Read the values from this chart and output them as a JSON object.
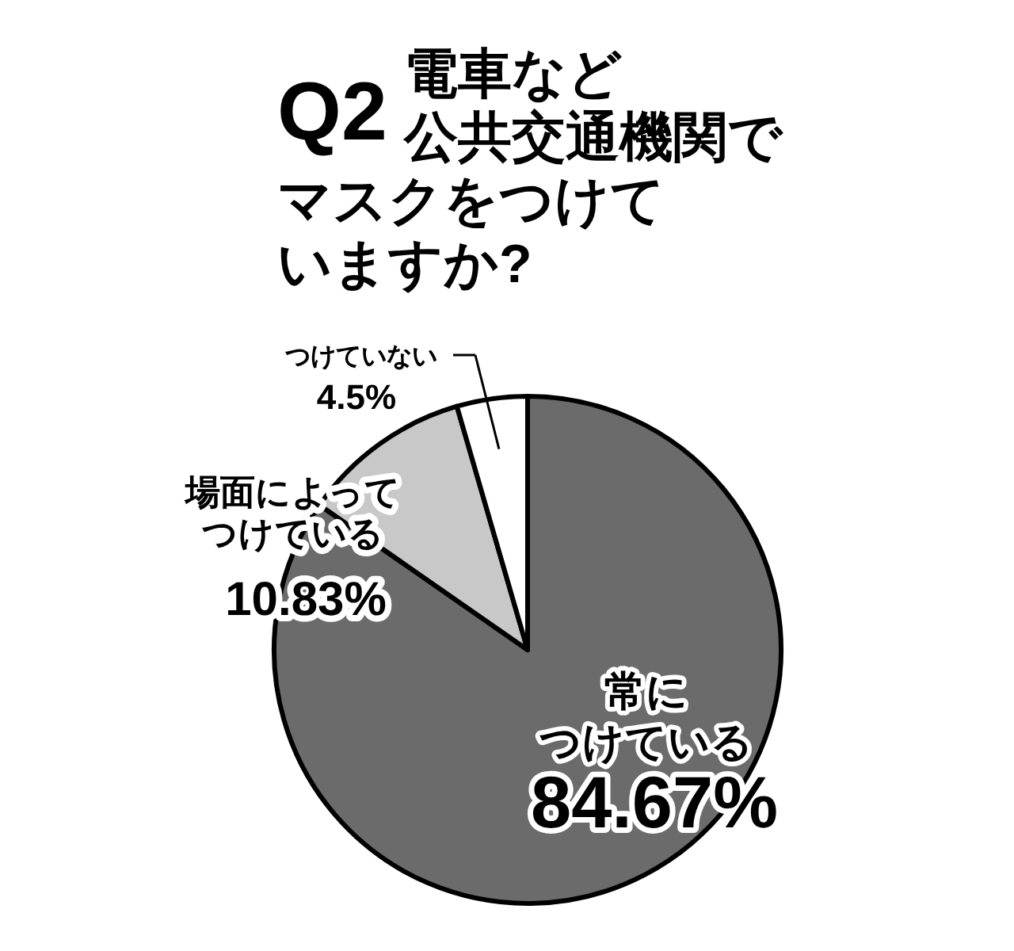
{
  "chart_data": {
    "type": "pie",
    "title": "Q2",
    "subtitle": "電車など公共交通機関でマスクをつけていますか?",
    "categories": [
      "常につけている",
      "場面によってつけている",
      "つけていない"
    ],
    "values": [
      84.67,
      10.83,
      4.5
    ],
    "value_labels": [
      "84.67%",
      "10.83%",
      "4.5%"
    ],
    "colors": [
      "#6b6b6b",
      "#c8c8c8",
      "#ffffff"
    ]
  }
}
